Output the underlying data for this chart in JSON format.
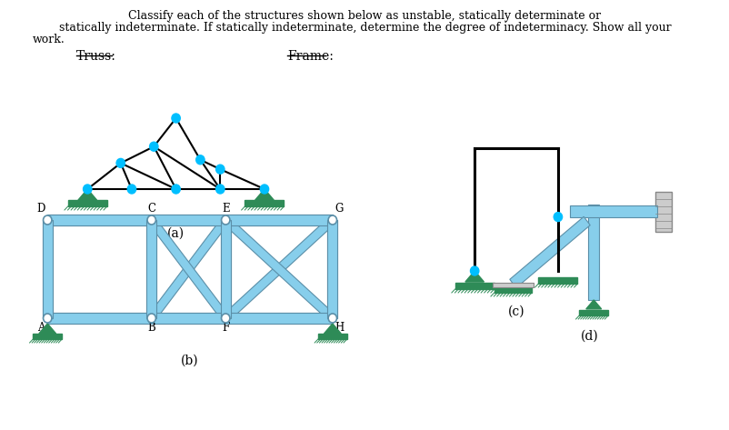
{
  "node_color": "#00BFFF",
  "support_triangle_color": "#2E8B57",
  "ground_color": "#2E8B57",
  "member_color": "#000000",
  "steel_color": "#87CEEB",
  "steel_edge": "#5B8FA8",
  "wall_color": "#CCCCCC",
  "wall_edge": "#888888",
  "label_truss": "Truss:",
  "label_frame": "Frame:",
  "label_a": "(a)",
  "label_b": "(b)",
  "label_c": "(c)",
  "label_d": "(d)",
  "header_line1": "Classify each of the structures shown below as unstable, statically determinate or",
  "header_line2": "statically indeterminate. If statically indeterminate, determine the degree of indeterminacy. Show all your",
  "header_line3": "work.",
  "node_labels_b": [
    "D",
    "C",
    "E",
    "G",
    "A",
    "B",
    "F",
    "H"
  ]
}
